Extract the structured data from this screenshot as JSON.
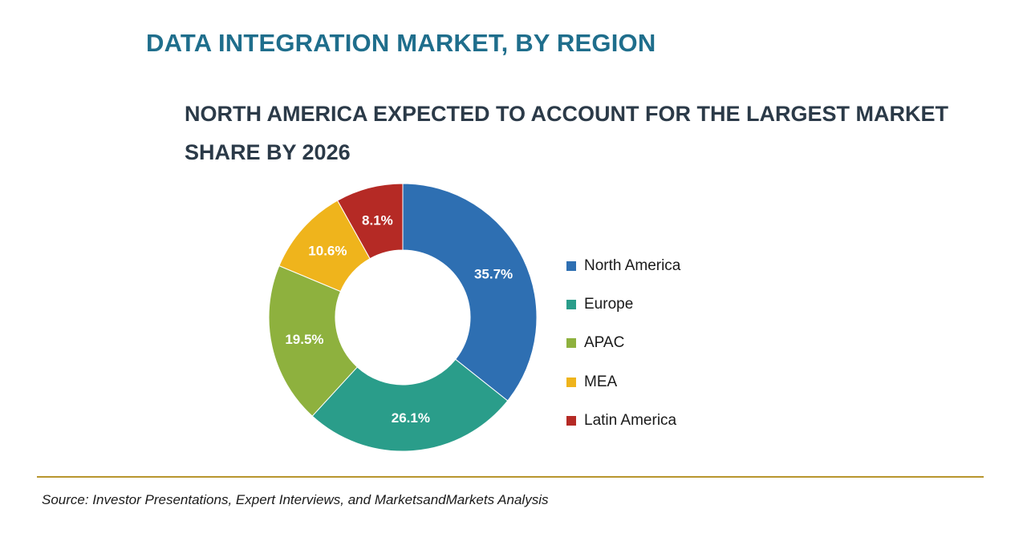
{
  "header": {
    "title": "DATA INTEGRATION MARKET, BY REGION",
    "subtitle": "NORTH AMERICA EXPECTED TO ACCOUNT FOR THE LARGEST MARKET SHARE BY 2026"
  },
  "chart_data": {
    "type": "pie",
    "variant": "donut",
    "title": "DATA INTEGRATION MARKET, BY REGION",
    "subtitle": "NORTH AMERICA EXPECTED TO ACCOUNT FOR THE LARGEST MARKET SHARE BY 2026",
    "categories": [
      "North America",
      "Europe",
      "APAC",
      "MEA",
      "Latin America"
    ],
    "values": [
      35.7,
      26.1,
      19.5,
      10.6,
      8.1
    ],
    "labels": [
      "35.7%",
      "26.1%",
      "19.5%",
      "10.6%",
      "8.1%"
    ],
    "colors": [
      "#2e6fb2",
      "#2a9d8a",
      "#8eb13e",
      "#efb41c",
      "#b52a25"
    ],
    "unit": "%",
    "legend_position": "right"
  },
  "footer": {
    "source": "Source: Investor Presentations, Expert Interviews, and MarketsandMarkets Analysis"
  }
}
